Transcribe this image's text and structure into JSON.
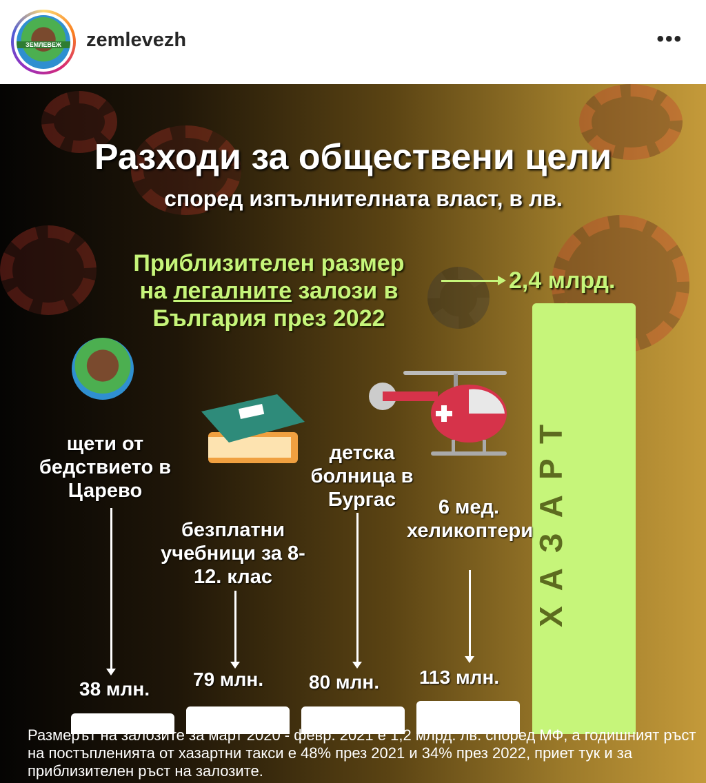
{
  "header": {
    "username": "zemlevezh",
    "avatar_text": "ЗЕМЛЕВЕЖ",
    "more": "•••"
  },
  "post": {
    "title": "Разходи за обществени цели",
    "subtitle": "според изпълнителната власт, в лв.",
    "legal": {
      "line1": "Приблизителен размер",
      "line2_pre": "на ",
      "line2_u": "легалните",
      "line2_post": " залози в",
      "line3": "България през 2022",
      "total": "2,4 млрд."
    },
    "footnote": "Размерът на залозите за март 2020 - февр. 2021 е 1,2 млрд. лв. според МФ, а годишният ръст на постъпленията от хазартни такси е 48% през 2021 и 34% през 2022, приет тук и за приблизителен ръст на залозите."
  },
  "chart_data": {
    "type": "bar",
    "unit": "млн. лв.",
    "categories": [
      "щети от бедствието в Царево",
      "безплатни учебници за 8-12. клас",
      "детска болница в Бургас",
      "6 мед. хеликоптери",
      "ХАЗАРТ"
    ],
    "values": [
      38,
      79,
      80,
      113,
      2400
    ],
    "value_labels": [
      "38 млн.",
      "79 млн.",
      "80 млн.",
      "113 млн.",
      "2,4 млрд."
    ],
    "bar_label": "ХАЗАРТ",
    "colors": {
      "bars": "#ffffff",
      "highlight": "#c6f57a"
    }
  }
}
